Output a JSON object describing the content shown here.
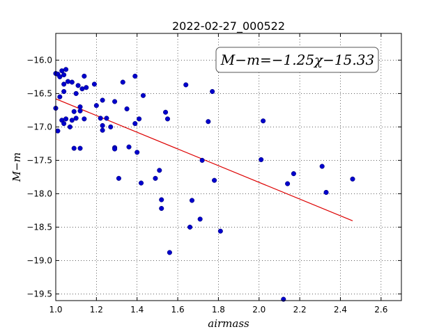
{
  "chart_data": {
    "type": "scatter",
    "title": "2022-02-27_000522",
    "xlabel": "airmass",
    "ylabel": "M−m",
    "xlim": [
      1.0,
      2.7
    ],
    "ylim": [
      -19.6,
      -15.6
    ],
    "y_inverted": true,
    "grid": true,
    "x_ticks": [
      1.0,
      1.2,
      1.4,
      1.6,
      1.8,
      2.0,
      2.2,
      2.4,
      2.6
    ],
    "x_tick_labels": [
      "1.0",
      "1.2",
      "1.4",
      "1.6",
      "1.8",
      "2.0",
      "2.2",
      "2.4",
      "2.6"
    ],
    "y_ticks": [
      -16.0,
      -16.5,
      -17.0,
      -17.5,
      -18.0,
      -18.5,
      -19.0,
      -19.5
    ],
    "y_tick_labels": [
      "−16.0",
      "−16.5",
      "−17.0",
      "−17.5",
      "−18.0",
      "−18.5",
      "−19.0",
      "−19.5"
    ],
    "annotation": "M−m=−1.25χ−15.33",
    "colors": {
      "points": "#0000cc",
      "fit": "#dd0000"
    },
    "fit_line": {
      "slope": -1.25,
      "intercept": -15.33,
      "x_range": [
        1.0,
        2.46
      ]
    },
    "series": [
      {
        "points": [
          [
            1.0,
            -16.2
          ],
          [
            1.0,
            -16.72
          ],
          [
            1.01,
            -17.06
          ],
          [
            1.01,
            -16.21
          ],
          [
            1.02,
            -16.25
          ],
          [
            1.02,
            -16.55
          ],
          [
            1.03,
            -16.9
          ],
          [
            1.03,
            -16.16
          ],
          [
            1.04,
            -16.47
          ],
          [
            1.04,
            -16.22
          ],
          [
            1.04,
            -16.36
          ],
          [
            1.04,
            -16.95
          ],
          [
            1.05,
            -16.88
          ],
          [
            1.05,
            -16.14
          ],
          [
            1.06,
            -16.32
          ],
          [
            1.07,
            -17.0
          ],
          [
            1.08,
            -16.33
          ],
          [
            1.08,
            -16.9
          ],
          [
            1.09,
            -16.77
          ],
          [
            1.09,
            -17.32
          ],
          [
            1.1,
            -16.87
          ],
          [
            1.1,
            -16.5
          ],
          [
            1.11,
            -16.38
          ],
          [
            1.12,
            -17.32
          ],
          [
            1.12,
            -16.7
          ],
          [
            1.12,
            -16.76
          ],
          [
            1.13,
            -16.43
          ],
          [
            1.14,
            -16.88
          ],
          [
            1.14,
            -16.24
          ],
          [
            1.15,
            -16.41
          ],
          [
            1.19,
            -16.36
          ],
          [
            1.2,
            -16.68
          ],
          [
            1.22,
            -16.87
          ],
          [
            1.23,
            -16.6
          ],
          [
            1.23,
            -16.98
          ],
          [
            1.23,
            -17.05
          ],
          [
            1.25,
            -16.87
          ],
          [
            1.27,
            -17.0
          ],
          [
            1.29,
            -16.62
          ],
          [
            1.29,
            -17.31
          ],
          [
            1.29,
            -17.33
          ],
          [
            1.31,
            -17.77
          ],
          [
            1.33,
            -16.33
          ],
          [
            1.35,
            -16.73
          ],
          [
            1.36,
            -17.3
          ],
          [
            1.39,
            -16.24
          ],
          [
            1.39,
            -16.95
          ],
          [
            1.4,
            -17.38
          ],
          [
            1.41,
            -16.88
          ],
          [
            1.42,
            -17.84
          ],
          [
            1.43,
            -16.53
          ],
          [
            1.49,
            -17.77
          ],
          [
            1.51,
            -17.65
          ],
          [
            1.52,
            -18.22
          ],
          [
            1.52,
            -18.09
          ],
          [
            1.54,
            -16.78
          ],
          [
            1.55,
            -16.88
          ],
          [
            1.56,
            -18.88
          ],
          [
            1.64,
            -16.37
          ],
          [
            1.66,
            -18.5
          ],
          [
            1.67,
            -18.1
          ],
          [
            1.71,
            -18.38
          ],
          [
            1.72,
            -17.5
          ],
          [
            1.75,
            -16.92
          ],
          [
            1.77,
            -16.47
          ],
          [
            1.78,
            -17.8
          ],
          [
            1.81,
            -18.56
          ],
          [
            2.01,
            -17.49
          ],
          [
            2.02,
            -16.91
          ],
          [
            2.12,
            -19.58
          ],
          [
            2.14,
            -17.85
          ],
          [
            2.17,
            -17.7
          ],
          [
            2.31,
            -17.59
          ],
          [
            2.33,
            -17.98
          ],
          [
            2.46,
            -17.78
          ]
        ]
      }
    ]
  }
}
